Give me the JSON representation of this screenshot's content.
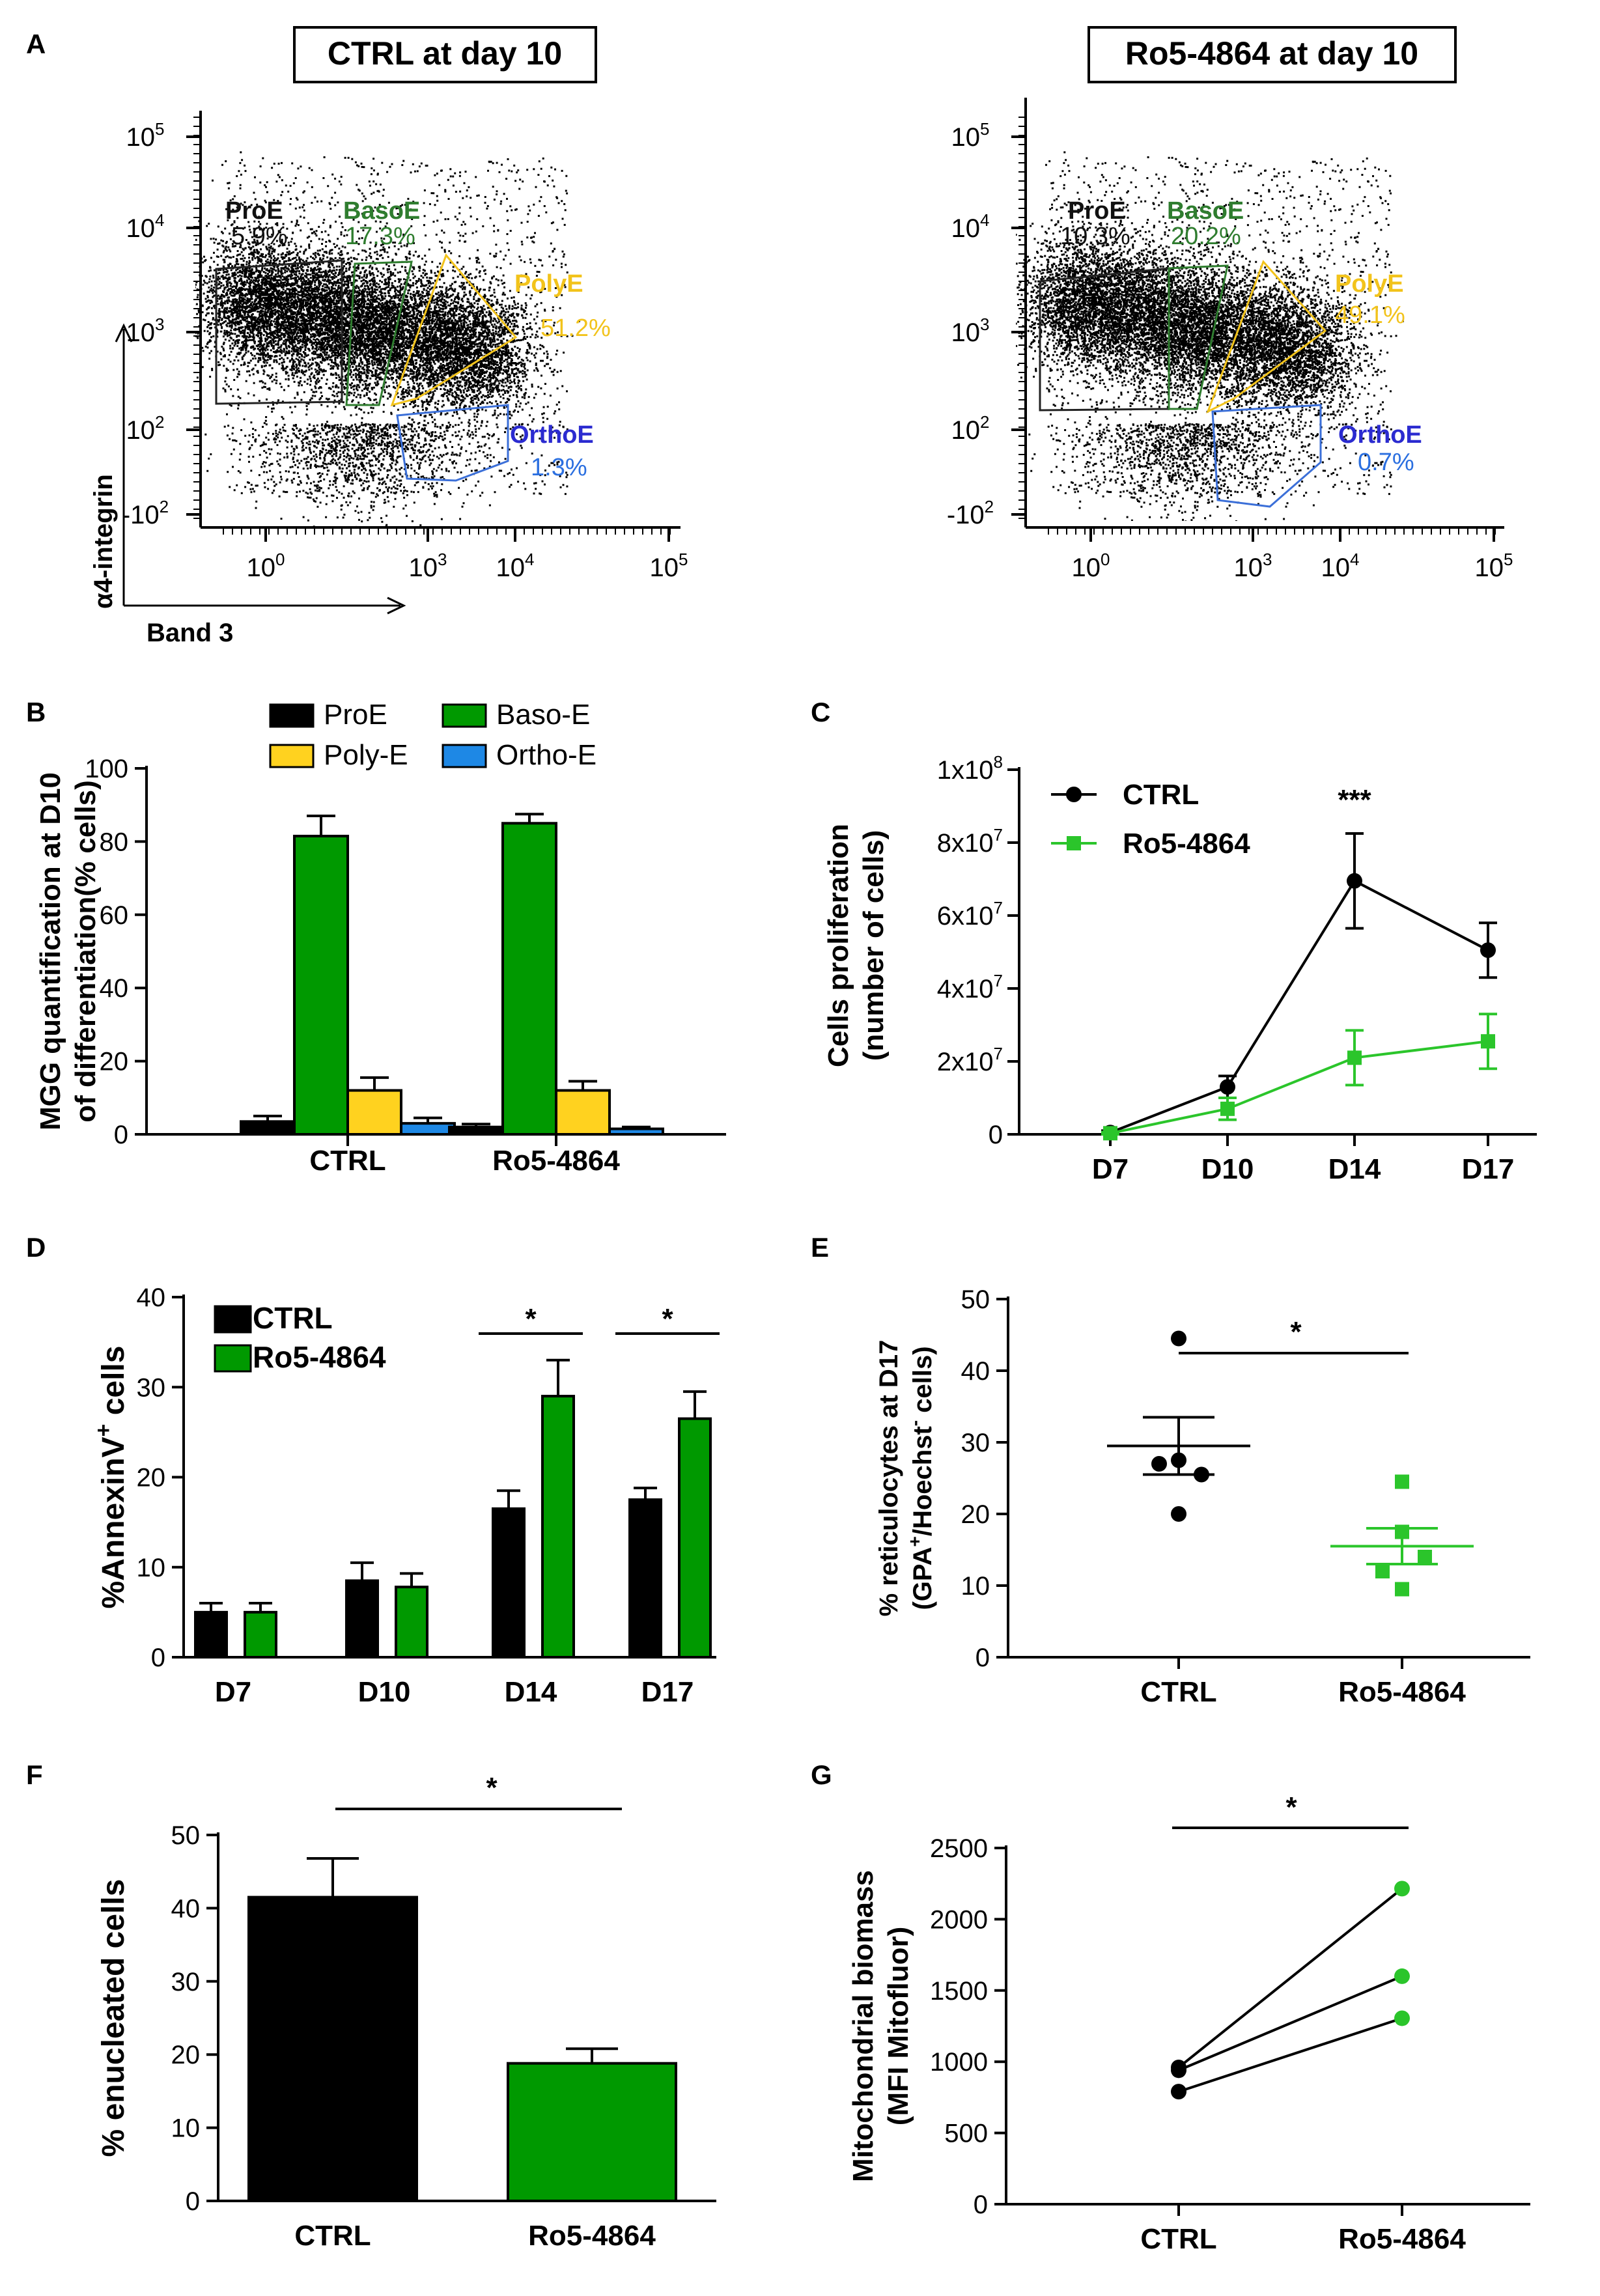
{
  "panel_letters": {
    "A": "A",
    "B": "B",
    "C": "C",
    "D": "D",
    "E": "E",
    "F": "F",
    "G": "G"
  },
  "colors": {
    "black": "#000000",
    "green": "#009900",
    "dark_green": "#1e8a1e",
    "light_green": "#2bc52b",
    "yellow": "#ffd21f",
    "gate_yellow": "#f2c31b",
    "blue": "#1e88e5",
    "gate_blue": "#3b6fd8",
    "gate_green": "#2f7d2f"
  },
  "chart_data": [
    {
      "id": "A",
      "type": "scatter",
      "ylabel": "α4-integrin",
      "xlabel": "Band 3",
      "x_ticks": [
        "10^0",
        "10^3",
        "10^4",
        "10^5"
      ],
      "y_ticks": [
        "10^5",
        "10^4",
        "10^3",
        "10^2",
        "-10^2"
      ],
      "plots": [
        {
          "title": "CTRL at day 10",
          "gates": [
            {
              "name": "ProE",
              "pct": "5.9%",
              "color": "#111111"
            },
            {
              "name": "BasoE",
              "pct": "17.3%",
              "color": "#2f7d2f"
            },
            {
              "name": "PolyE",
              "pct": "51.2%",
              "color": "#f2c31b"
            },
            {
              "name": "OrthoE",
              "pct": "1.3%",
              "color": "#3b6fd8"
            }
          ]
        },
        {
          "title": "Ro5-4864 at day 10",
          "gates": [
            {
              "name": "ProE",
              "pct": "10.3%",
              "color": "#111111"
            },
            {
              "name": "BasoE",
              "pct": "20.2%",
              "color": "#2f7d2f"
            },
            {
              "name": "PolyE",
              "pct": "49.1%",
              "color": "#f2c31b"
            },
            {
              "name": "OrthoE",
              "pct": "0.7%",
              "color": "#3b6fd8"
            }
          ]
        }
      ]
    },
    {
      "id": "B",
      "type": "bar",
      "ylabel_lines": [
        "MGG quantification at D10",
        "of differentiation(% cells)"
      ],
      "ylim": [
        0,
        100
      ],
      "yticks": [
        0,
        20,
        40,
        60,
        80,
        100
      ],
      "categories": [
        "CTRL",
        "Ro5-4864"
      ],
      "series": [
        {
          "name": "ProE",
          "color": "#000000",
          "values": [
            3.5,
            2
          ],
          "errors": [
            1.5,
            0.8
          ]
        },
        {
          "name": "Baso-E",
          "color": "#009900",
          "values": [
            81.5,
            85
          ],
          "errors": [
            5.5,
            2.5
          ]
        },
        {
          "name": "Poly-E",
          "color": "#ffd21f",
          "values": [
            12,
            12
          ],
          "errors": [
            3.5,
            2.5
          ]
        },
        {
          "name": "Ortho-E",
          "color": "#1e88e5",
          "values": [
            3,
            1.5
          ],
          "errors": [
            1.5,
            0.5
          ]
        }
      ]
    },
    {
      "id": "C",
      "type": "line",
      "ylabel_lines": [
        "Cells proliferation",
        "(number of cells)"
      ],
      "categories": [
        "D7",
        "D10",
        "D14",
        "D17"
      ],
      "ylim": [
        0,
        100000000
      ],
      "ytick_values": [
        0,
        20000000,
        40000000,
        60000000,
        80000000,
        100000000
      ],
      "ytick_labels": [
        {
          "base": "0",
          "exp": ""
        },
        {
          "base": "2x10",
          "exp": "7"
        },
        {
          "base": "4x10",
          "exp": "7"
        },
        {
          "base": "6x10",
          "exp": "7"
        },
        {
          "base": "8x10",
          "exp": "7"
        },
        {
          "base": "1x10",
          "exp": "8"
        }
      ],
      "annotation": "***",
      "series": [
        {
          "name": "CTRL",
          "color": "#000000",
          "marker": "circle",
          "values": [
            500000,
            13000000,
            69500000,
            50500000
          ],
          "errors": [
            500000,
            3000000,
            13000000,
            7500000
          ]
        },
        {
          "name": "Ro5-4864",
          "color": "#2bc52b",
          "marker": "square",
          "values": [
            300000,
            7000000,
            21000000,
            25500000
          ],
          "errors": [
            300000,
            3000000,
            7500000,
            7500000
          ]
        }
      ]
    },
    {
      "id": "D",
      "type": "bar",
      "ylabel_base": "%AnnexinV",
      "ylabel_sup": "+",
      "ylabel_tail": " cells",
      "ylim": [
        0,
        40
      ],
      "yticks": [
        0,
        10,
        20,
        30,
        40
      ],
      "categories": [
        "D7",
        "D10",
        "D14",
        "D17"
      ],
      "significance": [
        "",
        "",
        "*",
        "*"
      ],
      "series": [
        {
          "name": "CTRL",
          "color": "#000000",
          "values": [
            5,
            8.5,
            16.5,
            17.5
          ],
          "errors": [
            1,
            2,
            2,
            1.3
          ]
        },
        {
          "name": "Ro5-4864",
          "color": "#009900",
          "values": [
            5,
            7.8,
            29,
            26.5
          ],
          "errors": [
            1,
            1.5,
            4,
            3
          ]
        }
      ]
    },
    {
      "id": "E",
      "type": "scatter",
      "ylabel_line1": "% reticulocytes at D17",
      "ylabel_line2": {
        "a": "(GPA",
        "a_sup": "+",
        "b": "/Hoechst",
        "b_sup": "-",
        "c": " cells)"
      },
      "ylim": [
        0,
        50
      ],
      "yticks": [
        0,
        10,
        20,
        30,
        40,
        50
      ],
      "categories": [
        "CTRL",
        "Ro5-4864"
      ],
      "significance": "*",
      "groups": [
        {
          "name": "CTRL",
          "color": "#000000",
          "marker": "circle",
          "points": [
            44.5,
            27.5,
            27,
            25.5,
            20
          ],
          "mean": 29.5,
          "sem": 4
        },
        {
          "name": "Ro5-4864",
          "color": "#2bc52b",
          "marker": "square",
          "points": [
            24.5,
            17.5,
            14,
            12,
            9.5
          ],
          "mean": 15.5,
          "sem": 2.5
        }
      ]
    },
    {
      "id": "F",
      "type": "bar",
      "ylabel": "% enucleated cells",
      "ylim": [
        0,
        50
      ],
      "yticks": [
        0,
        10,
        20,
        30,
        40,
        50
      ],
      "categories": [
        "CTRL",
        "Ro5-4864"
      ],
      "values": [
        41.5,
        18.8
      ],
      "errors": [
        5.3,
        2
      ],
      "colors": [
        "#000000",
        "#009900"
      ],
      "significance": "*"
    },
    {
      "id": "G",
      "type": "line",
      "ylabel_lines": [
        "Mitochondrial biomass",
        "(MFI Mitofluor)"
      ],
      "ylim": [
        0,
        2500
      ],
      "yticks": [
        0,
        500,
        1000,
        1500,
        2000,
        2500
      ],
      "categories": [
        "CTRL",
        "Ro5-4864"
      ],
      "significance": "*",
      "pairs": [
        [
          960,
          2215
        ],
        [
          940,
          1600
        ],
        [
          790,
          1305
        ]
      ],
      "colors": [
        "#000000",
        "#2bc52b"
      ]
    }
  ]
}
